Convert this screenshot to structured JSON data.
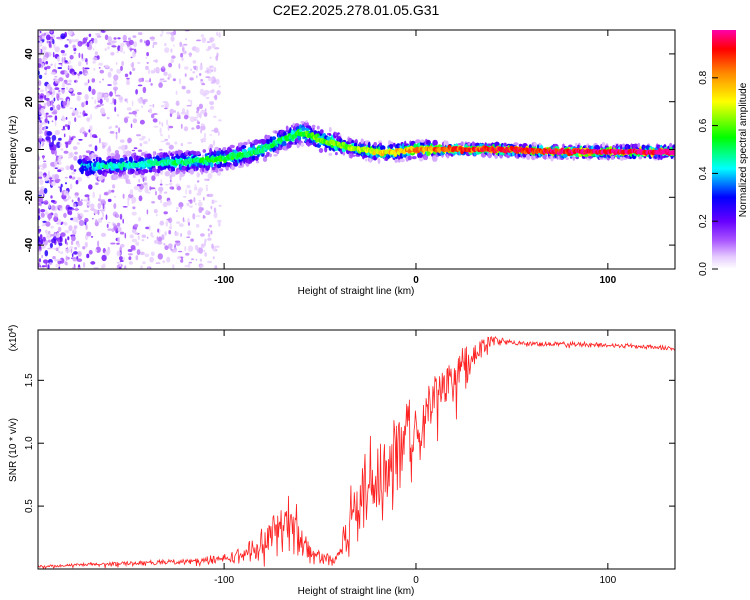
{
  "chart_data": [
    {
      "type": "heatmap",
      "title": "C2E2.2025.278.01.05.G31",
      "xlabel": "Height of straight line (km)",
      "ylabel": "Frequency (Hz)",
      "xlim": [
        -197,
        135
      ],
      "ylim": [
        -50,
        50
      ],
      "xticks": [
        -100,
        0,
        100
      ],
      "xtick_labels": [
        "-100",
        "0",
        "100"
      ],
      "yticks": [
        -40,
        -20,
        0,
        20,
        40
      ],
      "ytick_labels": [
        "-40",
        "-20",
        "0",
        "20",
        "40"
      ],
      "colorbar": {
        "label": "Normalized spectral amplitude",
        "range": [
          0,
          1
        ],
        "ticks": [
          0.0,
          0.2,
          0.4,
          0.6,
          0.8
        ],
        "tick_labels": [
          "0.0",
          "0.2",
          "0.4",
          "0.6",
          "0.8"
        ],
        "colors": [
          "#ffffff",
          "#cc99ff",
          "#7700ee",
          "#0000ff",
          "#00ffff",
          "#00ff00",
          "#ffff00",
          "#ff8800",
          "#ff0000",
          "#ff00aa"
        ]
      },
      "ridge": {
        "x": [
          -160,
          -140,
          -120,
          -100,
          -80,
          -70,
          -60,
          -55,
          -50,
          -40,
          -30,
          -20,
          -10,
          0,
          20,
          40,
          80,
          135
        ],
        "freq": [
          -7,
          -6,
          -5,
          -4,
          0,
          4,
          7,
          6,
          4,
          2,
          0,
          -1,
          -1,
          0,
          0,
          0,
          -1,
          -1
        ],
        "amp": [
          0.45,
          0.45,
          0.5,
          0.55,
          0.5,
          0.5,
          0.55,
          0.6,
          0.6,
          0.6,
          0.65,
          0.7,
          0.75,
          0.8,
          0.85,
          0.9,
          0.95,
          1.0
        ]
      }
    },
    {
      "type": "line",
      "xlabel": "Height of straight line (km)",
      "ylabel": "SNR (10 * v/v)",
      "multiplier_label": "(x10",
      "multiplier_exp": "4",
      "xlim": [
        -197,
        135
      ],
      "ylim": [
        0,
        1.9
      ],
      "xticks": [
        -100,
        0,
        100
      ],
      "xtick_labels": [
        "-100",
        "0",
        "100"
      ],
      "yticks": [
        0.5,
        1.0,
        1.5
      ],
      "ytick_labels": [
        "0.5",
        "1.0",
        "1.5"
      ],
      "color": "#ff2222",
      "series": [
        {
          "name": "SNR",
          "x": [
            -197,
            -180,
            -160,
            -140,
            -120,
            -100,
            -90,
            -80,
            -70,
            -65,
            -60,
            -55,
            -50,
            -45,
            -40,
            -35,
            -30,
            -25,
            -20,
            -15,
            -10,
            -5,
            0,
            10,
            20,
            30,
            38,
            40,
            50,
            60,
            80,
            100,
            120,
            135
          ],
          "y": [
            0.02,
            0.03,
            0.04,
            0.05,
            0.06,
            0.08,
            0.12,
            0.2,
            0.32,
            0.4,
            0.25,
            0.12,
            0.1,
            0.08,
            0.12,
            0.35,
            0.55,
            0.7,
            0.8,
            0.88,
            0.95,
            1.05,
            1.12,
            1.35,
            1.55,
            1.7,
            1.8,
            1.82,
            1.8,
            1.79,
            1.79,
            1.78,
            1.77,
            1.75
          ],
          "noise": [
            0.01,
            0.01,
            0.02,
            0.02,
            0.02,
            0.04,
            0.06,
            0.12,
            0.2,
            0.25,
            0.18,
            0.08,
            0.06,
            0.05,
            0.08,
            0.25,
            0.35,
            0.4,
            0.45,
            0.4,
            0.35,
            0.3,
            0.25,
            0.22,
            0.18,
            0.12,
            0.08,
            0.04,
            0.02,
            0.02,
            0.02,
            0.02,
            0.02,
            0.02
          ]
        }
      ]
    }
  ]
}
